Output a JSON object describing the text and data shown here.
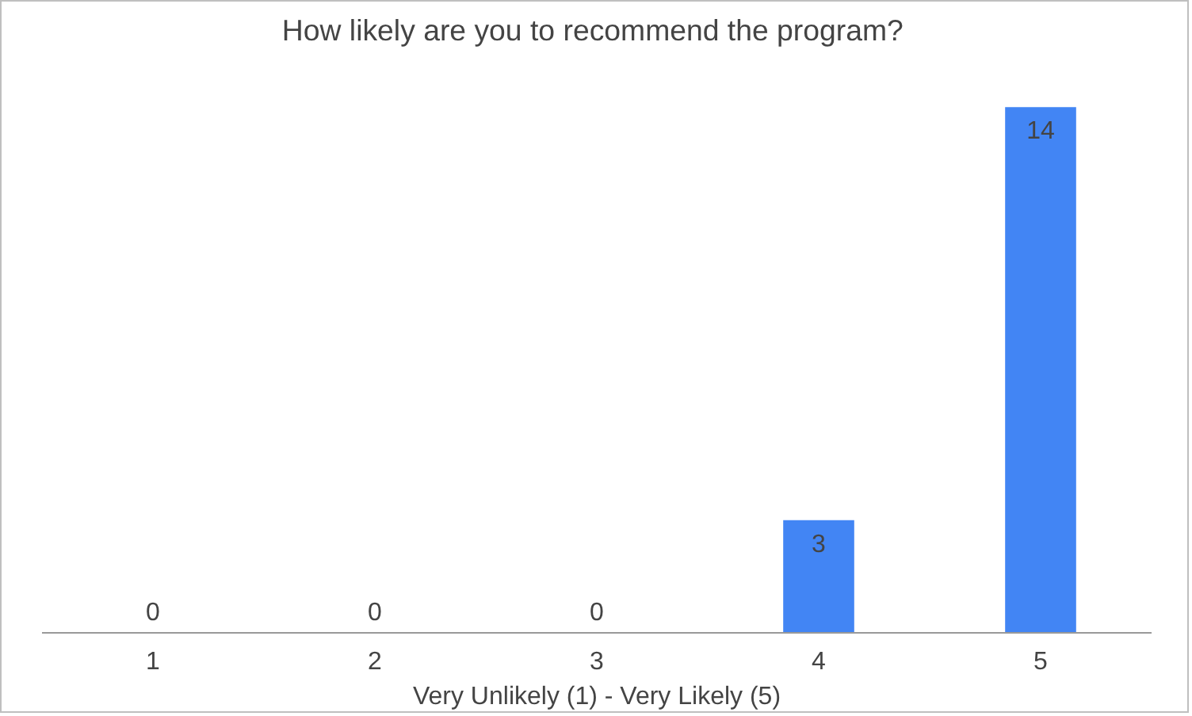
{
  "chart_data": {
    "type": "bar",
    "title": "How likely  are you to recommend the program?",
    "xlabel": "Very Unlikely (1) - Very Likely (5)",
    "categories": [
      "1",
      "2",
      "3",
      "4",
      "5"
    ],
    "values": [
      0,
      0,
      0,
      3,
      14
    ],
    "color": "#4285f4",
    "data_labels": true,
    "grid": false,
    "tick_labels": "x"
  }
}
